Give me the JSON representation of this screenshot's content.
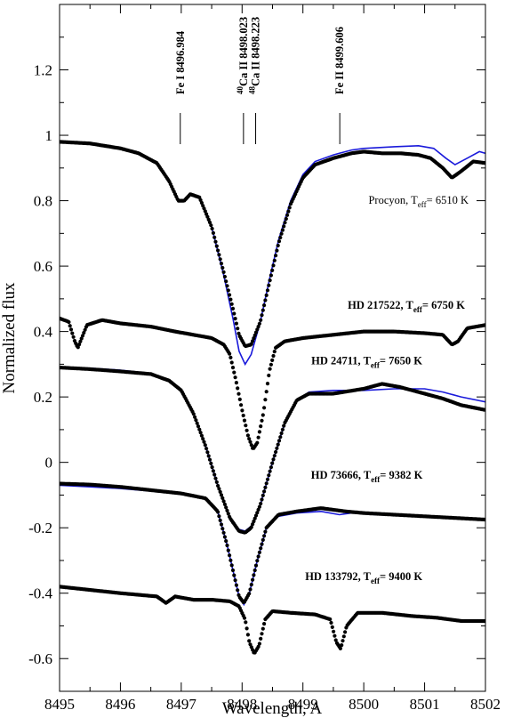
{
  "chart_data": {
    "type": "scatter",
    "xlabel": "Wavelength, A",
    "ylabel": "Normalized flux",
    "xlim": [
      8495,
      8502
    ],
    "ylim": [
      -0.7,
      1.4
    ],
    "x_ticks": [
      8495,
      8496,
      8497,
      8498,
      8499,
      8500,
      8501,
      8502
    ],
    "y_ticks": [
      -0.6,
      -0.4,
      -0.2,
      0,
      0.2,
      0.4,
      0.6,
      0.8,
      1,
      1.2
    ],
    "y_tick_labels": [
      "-0.6",
      "-0.4",
      "-0.2",
      "0",
      "0.2",
      "0.4",
      "0.6",
      "0.8",
      "1",
      "1.2"
    ],
    "grid": false,
    "line_markers": [
      {
        "x": 8496.984,
        "label": "Fe I 8496.984"
      },
      {
        "x": 8498.023,
        "label": "Ca II 8498.023",
        "isotope": "40"
      },
      {
        "x": 8498.223,
        "label": "Ca II 8498.223",
        "isotope": "48"
      },
      {
        "x": 8499.606,
        "label": "Fe II 8499.606"
      }
    ],
    "spectra": [
      {
        "name": "Procyon",
        "label_prefix": "Procyon, T",
        "label_sub": "eff",
        "label_suffix": "= 6510 K",
        "label_pos": [
          8500.9,
          0.79
        ],
        "observed": [
          [
            8495.0,
            0.98
          ],
          [
            8495.5,
            0.975
          ],
          [
            8496.0,
            0.96
          ],
          [
            8496.3,
            0.945
          ],
          [
            8496.6,
            0.915
          ],
          [
            8496.8,
            0.86
          ],
          [
            8496.95,
            0.8
          ],
          [
            8497.05,
            0.8
          ],
          [
            8497.15,
            0.82
          ],
          [
            8497.3,
            0.81
          ],
          [
            8497.5,
            0.72
          ],
          [
            8497.7,
            0.58
          ],
          [
            8497.85,
            0.47
          ],
          [
            8497.95,
            0.39
          ],
          [
            8498.05,
            0.355
          ],
          [
            8498.15,
            0.36
          ],
          [
            8498.3,
            0.43
          ],
          [
            8498.45,
            0.55
          ],
          [
            8498.6,
            0.67
          ],
          [
            8498.8,
            0.79
          ],
          [
            8499.0,
            0.87
          ],
          [
            8499.2,
            0.91
          ],
          [
            8499.5,
            0.93
          ],
          [
            8499.8,
            0.945
          ],
          [
            8500.0,
            0.95
          ],
          [
            8500.3,
            0.945
          ],
          [
            8500.6,
            0.945
          ],
          [
            8500.9,
            0.94
          ],
          [
            8501.1,
            0.93
          ],
          [
            8501.3,
            0.9
          ],
          [
            8501.45,
            0.87
          ],
          [
            8501.6,
            0.89
          ],
          [
            8501.8,
            0.92
          ],
          [
            8502.0,
            0.915
          ]
        ],
        "model": [
          [
            8495.0,
            0.98
          ],
          [
            8495.5,
            0.975
          ],
          [
            8496.0,
            0.96
          ],
          [
            8496.3,
            0.945
          ],
          [
            8496.6,
            0.915
          ],
          [
            8496.8,
            0.86
          ],
          [
            8496.95,
            0.8
          ],
          [
            8497.05,
            0.8
          ],
          [
            8497.15,
            0.82
          ],
          [
            8497.3,
            0.81
          ],
          [
            8497.5,
            0.72
          ],
          [
            8497.7,
            0.57
          ],
          [
            8497.85,
            0.44
          ],
          [
            8497.95,
            0.34
          ],
          [
            8498.05,
            0.3
          ],
          [
            8498.15,
            0.33
          ],
          [
            8498.3,
            0.43
          ],
          [
            8498.45,
            0.56
          ],
          [
            8498.6,
            0.68
          ],
          [
            8498.8,
            0.8
          ],
          [
            8499.0,
            0.88
          ],
          [
            8499.2,
            0.92
          ],
          [
            8499.5,
            0.94
          ],
          [
            8499.8,
            0.955
          ],
          [
            8500.0,
            0.96
          ],
          [
            8500.5,
            0.965
          ],
          [
            8500.9,
            0.968
          ],
          [
            8501.15,
            0.96
          ],
          [
            8501.35,
            0.93
          ],
          [
            8501.5,
            0.91
          ],
          [
            8501.7,
            0.93
          ],
          [
            8501.9,
            0.95
          ],
          [
            8502.0,
            0.945
          ]
        ]
      },
      {
        "name": "HD 217522",
        "label_prefix": "HD 217522, T",
        "label_sub": "eff",
        "label_suffix": "= 6750 K",
        "label_pos": [
          8500.7,
          0.47
        ],
        "observed": [
          [
            8495.0,
            0.44
          ],
          [
            8495.15,
            0.43
          ],
          [
            8495.25,
            0.37
          ],
          [
            8495.3,
            0.35
          ],
          [
            8495.45,
            0.42
          ],
          [
            8495.7,
            0.435
          ],
          [
            8496.0,
            0.425
          ],
          [
            8496.5,
            0.415
          ],
          [
            8496.9,
            0.4
          ],
          [
            8497.2,
            0.39
          ],
          [
            8497.5,
            0.38
          ],
          [
            8497.7,
            0.36
          ],
          [
            8497.8,
            0.33
          ],
          [
            8497.9,
            0.25
          ],
          [
            8498.0,
            0.16
          ],
          [
            8498.1,
            0.08
          ],
          [
            8498.18,
            0.04
          ],
          [
            8498.25,
            0.06
          ],
          [
            8498.35,
            0.15
          ],
          [
            8498.45,
            0.28
          ],
          [
            8498.55,
            0.35
          ],
          [
            8498.7,
            0.37
          ],
          [
            8499.0,
            0.38
          ],
          [
            8499.5,
            0.39
          ],
          [
            8500.0,
            0.4
          ],
          [
            8500.5,
            0.4
          ],
          [
            8501.0,
            0.395
          ],
          [
            8501.3,
            0.39
          ],
          [
            8501.45,
            0.36
          ],
          [
            8501.55,
            0.37
          ],
          [
            8501.7,
            0.41
          ],
          [
            8502.0,
            0.42
          ]
        ]
      },
      {
        "name": "HD 24711",
        "label_prefix": "HD  24711, T",
        "label_sub": "eff",
        "label_suffix": "= 7650 K",
        "label_pos": [
          8500.05,
          0.3
        ],
        "observed": [
          [
            8495.0,
            0.29
          ],
          [
            8495.5,
            0.285
          ],
          [
            8496.0,
            0.278
          ],
          [
            8496.5,
            0.27
          ],
          [
            8496.8,
            0.25
          ],
          [
            8497.0,
            0.22
          ],
          [
            8497.2,
            0.15
          ],
          [
            8497.4,
            0.05
          ],
          [
            8497.6,
            -0.07
          ],
          [
            8497.8,
            -0.17
          ],
          [
            8497.95,
            -0.21
          ],
          [
            8498.05,
            -0.215
          ],
          [
            8498.15,
            -0.2
          ],
          [
            8498.3,
            -0.13
          ],
          [
            8498.5,
            0.0
          ],
          [
            8498.7,
            0.12
          ],
          [
            8498.9,
            0.19
          ],
          [
            8499.1,
            0.21
          ],
          [
            8499.5,
            0.21
          ],
          [
            8500.0,
            0.225
          ],
          [
            8500.3,
            0.24
          ],
          [
            8500.6,
            0.23
          ],
          [
            8501.0,
            0.21
          ],
          [
            8501.3,
            0.195
          ],
          [
            8501.6,
            0.175
          ],
          [
            8502.0,
            0.16
          ]
        ],
        "model": [
          [
            8495.0,
            0.29
          ],
          [
            8495.5,
            0.288
          ],
          [
            8496.0,
            0.282
          ],
          [
            8496.5,
            0.272
          ],
          [
            8496.8,
            0.25
          ],
          [
            8497.0,
            0.22
          ],
          [
            8497.2,
            0.15
          ],
          [
            8497.4,
            0.05
          ],
          [
            8497.6,
            -0.07
          ],
          [
            8497.8,
            -0.17
          ],
          [
            8497.95,
            -0.205
          ],
          [
            8498.05,
            -0.21
          ],
          [
            8498.15,
            -0.195
          ],
          [
            8498.3,
            -0.13
          ],
          [
            8498.5,
            0.0
          ],
          [
            8498.7,
            0.12
          ],
          [
            8498.9,
            0.19
          ],
          [
            8499.1,
            0.215
          ],
          [
            8499.5,
            0.22
          ],
          [
            8500.0,
            0.22
          ],
          [
            8500.5,
            0.225
          ],
          [
            8501.0,
            0.225
          ],
          [
            8501.3,
            0.215
          ],
          [
            8501.6,
            0.2
          ],
          [
            8502.0,
            0.185
          ]
        ]
      },
      {
        "name": "HD 73666",
        "label_prefix": "HD  73666, T",
        "label_sub": "eff",
        "label_suffix": "= 9382 K",
        "label_pos": [
          8500.05,
          -0.05
        ],
        "observed": [
          [
            8495.0,
            -0.065
          ],
          [
            8495.5,
            -0.068
          ],
          [
            8496.0,
            -0.075
          ],
          [
            8496.5,
            -0.085
          ],
          [
            8497.0,
            -0.095
          ],
          [
            8497.4,
            -0.11
          ],
          [
            8497.6,
            -0.15
          ],
          [
            8497.75,
            -0.25
          ],
          [
            8497.85,
            -0.33
          ],
          [
            8497.95,
            -0.41
          ],
          [
            8498.03,
            -0.43
          ],
          [
            8498.12,
            -0.4
          ],
          [
            8498.25,
            -0.3
          ],
          [
            8498.4,
            -0.2
          ],
          [
            8498.6,
            -0.16
          ],
          [
            8498.9,
            -0.15
          ],
          [
            8499.3,
            -0.14
          ],
          [
            8499.7,
            -0.15
          ],
          [
            8500.0,
            -0.155
          ],
          [
            8500.5,
            -0.16
          ],
          [
            8501.0,
            -0.165
          ],
          [
            8501.5,
            -0.17
          ],
          [
            8502.0,
            -0.175
          ]
        ],
        "model": [
          [
            8495.0,
            -0.07
          ],
          [
            8495.5,
            -0.075
          ],
          [
            8496.0,
            -0.08
          ],
          [
            8496.5,
            -0.088
          ],
          [
            8497.0,
            -0.097
          ],
          [
            8497.4,
            -0.11
          ],
          [
            8497.6,
            -0.15
          ],
          [
            8497.75,
            -0.25
          ],
          [
            8497.85,
            -0.33
          ],
          [
            8497.95,
            -0.41
          ],
          [
            8498.03,
            -0.435
          ],
          [
            8498.12,
            -0.4
          ],
          [
            8498.25,
            -0.3
          ],
          [
            8498.4,
            -0.2
          ],
          [
            8498.6,
            -0.165
          ],
          [
            8498.9,
            -0.155
          ],
          [
            8499.3,
            -0.15
          ],
          [
            8499.6,
            -0.16
          ],
          [
            8499.8,
            -0.155
          ],
          [
            8500.2,
            -0.16
          ],
          [
            8500.6,
            -0.163
          ],
          [
            8501.0,
            -0.165
          ],
          [
            8501.5,
            -0.17
          ],
          [
            8502.0,
            -0.175
          ]
        ]
      },
      {
        "name": "HD 133792",
        "label_prefix": "HD 133792, T",
        "label_sub": "eff",
        "label_suffix": "= 9400 K",
        "label_pos": [
          8500.0,
          -0.36
        ],
        "observed": [
          [
            8495.0,
            -0.38
          ],
          [
            8495.5,
            -0.39
          ],
          [
            8496.0,
            -0.4
          ],
          [
            8496.3,
            -0.405
          ],
          [
            8496.6,
            -0.41
          ],
          [
            8496.75,
            -0.43
          ],
          [
            8496.9,
            -0.41
          ],
          [
            8497.2,
            -0.42
          ],
          [
            8497.5,
            -0.42
          ],
          [
            8497.8,
            -0.425
          ],
          [
            8497.95,
            -0.44
          ],
          [
            8498.05,
            -0.48
          ],
          [
            8498.12,
            -0.55
          ],
          [
            8498.2,
            -0.585
          ],
          [
            8498.28,
            -0.56
          ],
          [
            8498.38,
            -0.48
          ],
          [
            8498.5,
            -0.455
          ],
          [
            8498.8,
            -0.46
          ],
          [
            8499.2,
            -0.465
          ],
          [
            8499.45,
            -0.48
          ],
          [
            8499.55,
            -0.55
          ],
          [
            8499.62,
            -0.57
          ],
          [
            8499.72,
            -0.5
          ],
          [
            8499.9,
            -0.46
          ],
          [
            8500.3,
            -0.46
          ],
          [
            8500.8,
            -0.47
          ],
          [
            8501.2,
            -0.475
          ],
          [
            8501.6,
            -0.485
          ],
          [
            8502.0,
            -0.485
          ]
        ]
      }
    ]
  }
}
